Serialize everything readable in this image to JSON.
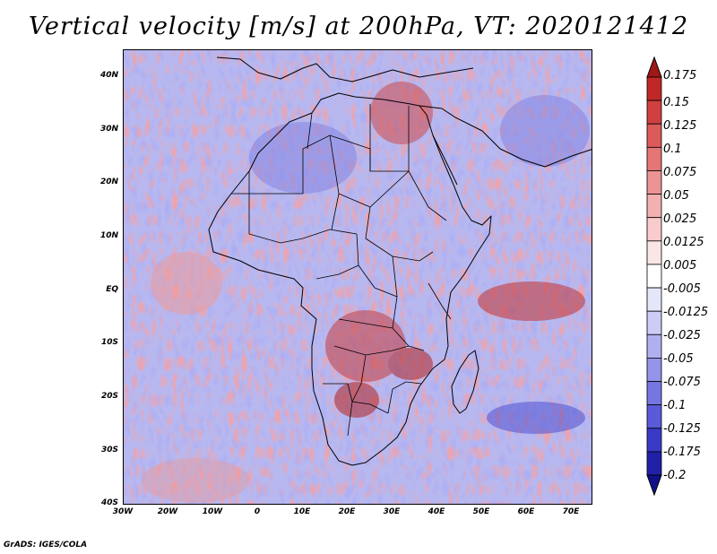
{
  "title": "Vertical velocity [m/s] at 200hPa, VT: 2020121412",
  "footer": "GrADS: IGES/COLA",
  "map": {
    "region": "Africa",
    "lon_range": [
      -30,
      75
    ],
    "lat_range": [
      -40,
      45
    ]
  },
  "axes": {
    "lat_ticks": [
      "40N",
      "30N",
      "20N",
      "10N",
      "EQ",
      "10S",
      "20S",
      "30S",
      "40S"
    ],
    "lon_ticks": [
      "30W",
      "20W",
      "10W",
      "0",
      "10E",
      "20E",
      "30E",
      "40E",
      "50E",
      "60E",
      "70E"
    ]
  },
  "colorbar": {
    "labels": [
      "0.175",
      "0.15",
      "0.125",
      "0.1",
      "0.075",
      "0.05",
      "0.025",
      "0.0125",
      "0.005",
      "-0.005",
      "-0.0125",
      "-0.025",
      "-0.05",
      "-0.075",
      "-0.1",
      "-0.125",
      "-0.175",
      "-0.2"
    ],
    "colors": [
      "#a01818",
      "#c02828",
      "#d04040",
      "#dc5a5a",
      "#e47676",
      "#ec9494",
      "#f2b0b0",
      "#f8cccc",
      "#fbe6e6",
      "#ffffff",
      "#e6e6fb",
      "#ccccf6",
      "#b0b0f0",
      "#9494ea",
      "#7676e2",
      "#5a5ada",
      "#3a3ac8",
      "#2020a8",
      "#10108a"
    ]
  }
}
